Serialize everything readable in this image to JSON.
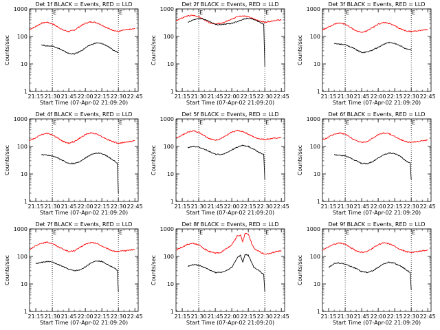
{
  "chart_data": [
    {
      "type": "line",
      "title": "Det 1f BLACK = Events, RED = LLD",
      "xlabel": "Start Time (07-Apr-02 21:09:20)",
      "ylabel": "Counts/sec",
      "ylog": true,
      "markers": [
        "E",
        "E"
      ],
      "series": [
        {
          "name": "LLD",
          "color": "#ff0000",
          "x": [
            "21:09:20",
            "21:15",
            "21:20",
            "21:25",
            "21:30",
            "21:35",
            "21:40",
            "21:45",
            "21:50",
            "21:55",
            "22:00",
            "22:05",
            "22:10",
            "22:15",
            "22:20",
            "22:25",
            "22:30",
            "22:35",
            "22:40",
            "22:45"
          ],
          "y": [
            180,
            230,
            300,
            330,
            290,
            220,
            170,
            150,
            170,
            230,
            300,
            340,
            320,
            260,
            200,
            170,
            150,
            170,
            180,
            190
          ]
        },
        {
          "name": "Events",
          "color": "#000000",
          "x": [
            "21:20",
            "21:25",
            "21:30",
            "21:35",
            "21:40",
            "21:45",
            "21:50",
            "21:55",
            "22:00",
            "22:05",
            "22:10",
            "22:15",
            "22:20",
            "22:25",
            "22:30"
          ],
          "y": [
            50,
            45,
            45,
            38,
            30,
            24,
            23,
            28,
            38,
            50,
            58,
            55,
            45,
            32,
            26
          ]
        }
      ]
    },
    {
      "type": "line",
      "title": "Det 2f BLACK = Events, RED = LLD",
      "xlabel": "Start Time (07-Apr-02 21:09:20)",
      "ylabel": "Counts/sec",
      "ylog": true,
      "markers": [
        "E",
        "E"
      ],
      "series": [
        {
          "name": "LLD",
          "color": "#ff0000",
          "x": [
            "21:09:20",
            "21:15",
            "21:20",
            "21:25",
            "21:30",
            "21:35",
            "21:40",
            "21:45",
            "21:50",
            "21:55",
            "22:00",
            "22:05",
            "22:10",
            "22:15",
            "22:20",
            "22:25",
            "22:30",
            "22:35",
            "22:40",
            "22:45"
          ],
          "y": [
            380,
            470,
            560,
            580,
            520,
            410,
            310,
            290,
            300,
            350,
            430,
            520,
            560,
            520,
            430,
            360,
            330,
            350,
            380,
            400
          ]
        },
        {
          "name": "Events",
          "color": "#000000",
          "x": [
            "21:20",
            "21:25",
            "21:30",
            "21:35",
            "21:40",
            "21:45",
            "21:50",
            "21:55",
            "22:00",
            "22:05",
            "22:10",
            "22:15",
            "22:20",
            "22:25",
            "22:29",
            "22:30"
          ],
          "y": [
            320,
            400,
            450,
            420,
            350,
            270,
            270,
            280,
            300,
            350,
            420,
            460,
            420,
            330,
            280,
            8
          ]
        }
      ]
    },
    {
      "type": "line",
      "title": "Det 3f BLACK = Events, RED = LLD",
      "xlabel": "Start Time (07-Apr-02 21:09:20)",
      "ylabel": "Counts/sec",
      "ylog": true,
      "markers": [
        "E",
        "E"
      ],
      "series": [
        {
          "name": "LLD",
          "color": "#ff0000",
          "x": [
            "21:09:20",
            "21:15",
            "21:20",
            "21:25",
            "21:30",
            "21:35",
            "21:40",
            "21:45",
            "21:50",
            "21:55",
            "22:00",
            "22:05",
            "22:10",
            "22:15",
            "22:20",
            "22:25",
            "22:30",
            "22:35",
            "22:40",
            "22:45"
          ],
          "y": [
            170,
            220,
            280,
            310,
            280,
            210,
            160,
            140,
            160,
            210,
            280,
            320,
            300,
            240,
            190,
            160,
            150,
            160,
            170,
            180
          ]
        },
        {
          "name": "Events",
          "color": "#000000",
          "x": [
            "21:20",
            "21:25",
            "21:30",
            "21:35",
            "21:40",
            "21:45",
            "21:50",
            "21:55",
            "22:00",
            "22:05",
            "22:10",
            "22:15",
            "22:20",
            "22:25",
            "22:30"
          ],
          "y": [
            55,
            52,
            50,
            42,
            33,
            26,
            27,
            32,
            40,
            52,
            60,
            55,
            46,
            36,
            32
          ]
        }
      ]
    },
    {
      "type": "line",
      "title": "Det 4f BLACK = Events, RED = LLD",
      "xlabel": "Start Time (07-Apr-02 21:09:20)",
      "ylabel": "Counts/sec",
      "ylog": true,
      "markers": [
        "E",
        "E"
      ],
      "series": [
        {
          "name": "LLD",
          "color": "#ff0000",
          "x": [
            "21:09:20",
            "21:15",
            "21:20",
            "21:25",
            "21:30",
            "21:35",
            "21:40",
            "21:45",
            "21:50",
            "21:55",
            "22:00",
            "22:05",
            "22:10",
            "22:15",
            "22:20",
            "22:25",
            "22:30",
            "22:35",
            "22:40",
            "22:45"
          ],
          "y": [
            160,
            210,
            270,
            300,
            270,
            200,
            150,
            130,
            150,
            200,
            270,
            310,
            290,
            230,
            180,
            150,
            130,
            140,
            150,
            160
          ]
        },
        {
          "name": "Events",
          "color": "#000000",
          "x": [
            "21:20",
            "21:25",
            "21:30",
            "21:35",
            "21:40",
            "21:45",
            "21:50",
            "21:55",
            "22:00",
            "22:05",
            "22:10",
            "22:15",
            "22:20",
            "22:25",
            "22:29",
            "22:30"
          ],
          "y": [
            50,
            48,
            45,
            38,
            30,
            24,
            24,
            28,
            38,
            50,
            58,
            55,
            44,
            32,
            25,
            2
          ]
        }
      ]
    },
    {
      "type": "line",
      "title": "Det 5f BLACK = Events, RED = LLD",
      "xlabel": "Start Time (07-Apr-02 21:09:20)",
      "ylabel": "Counts/sec",
      "ylog": true,
      "markers": [
        "E",
        "E"
      ],
      "series": [
        {
          "name": "LLD",
          "color": "#ff0000",
          "x": [
            "21:09:20",
            "21:15",
            "21:20",
            "21:25",
            "21:30",
            "21:35",
            "21:40",
            "21:45",
            "21:50",
            "21:55",
            "22:00",
            "22:05",
            "22:10",
            "22:15",
            "22:20",
            "22:25",
            "22:30",
            "22:35",
            "22:40",
            "22:45"
          ],
          "y": [
            200,
            260,
            330,
            370,
            330,
            250,
            190,
            170,
            190,
            250,
            330,
            380,
            350,
            280,
            220,
            190,
            180,
            190,
            200,
            210
          ]
        },
        {
          "name": "Events",
          "color": "#000000",
          "x": [
            "21:20",
            "21:25",
            "21:30",
            "21:35",
            "21:40",
            "21:45",
            "21:50",
            "21:55",
            "22:00",
            "22:05",
            "22:10",
            "22:15",
            "22:20",
            "22:25",
            "22:29",
            "22:30"
          ],
          "y": [
            90,
            100,
            95,
            80,
            65,
            52,
            50,
            58,
            75,
            95,
            110,
            100,
            80,
            60,
            52,
            6
          ]
        }
      ]
    },
    {
      "type": "line",
      "title": "Det 6f BLACK = Events, RED = LLD",
      "xlabel": "Start Time (07-Apr-02 21:09:20)",
      "ylabel": "Counts/sec",
      "ylog": true,
      "markers": [
        "E",
        "E"
      ],
      "series": [
        {
          "name": "LLD",
          "color": "#ff0000",
          "x": [
            "21:09:20",
            "21:15",
            "21:20",
            "21:25",
            "21:30",
            "21:35",
            "21:40",
            "21:45",
            "21:50",
            "21:55",
            "22:00",
            "22:05",
            "22:10",
            "22:15",
            "22:20",
            "22:25",
            "22:30",
            "22:35",
            "22:40",
            "22:45"
          ],
          "y": [
            170,
            220,
            280,
            310,
            280,
            210,
            160,
            140,
            150,
            200,
            270,
            310,
            290,
            230,
            180,
            150,
            140,
            150,
            160,
            170
          ]
        },
        {
          "name": "Events",
          "color": "#000000",
          "x": [
            "21:20",
            "21:25",
            "21:30",
            "21:35",
            "21:40",
            "21:45",
            "21:50",
            "21:55",
            "22:00",
            "22:05",
            "22:10",
            "22:15",
            "22:20",
            "22:25",
            "22:29",
            "22:30"
          ],
          "y": [
            50,
            48,
            45,
            38,
            30,
            24,
            24,
            28,
            38,
            50,
            58,
            55,
            44,
            30,
            25,
            6
          ]
        }
      ]
    },
    {
      "type": "line",
      "title": "Det 7f BLACK = Events, RED = LLD",
      "xlabel": "Start Time (07-Apr-02 21:09:20)",
      "ylabel": "Counts/sec",
      "ylog": true,
      "markers": [
        "E",
        "E"
      ],
      "series": [
        {
          "name": "LLD",
          "color": "#ff0000",
          "x": [
            "21:09:20",
            "21:15",
            "21:20",
            "21:25",
            "21:30",
            "21:35",
            "21:40",
            "21:45",
            "21:50",
            "21:55",
            "22:00",
            "22:05",
            "22:10",
            "22:15",
            "22:20",
            "22:25",
            "22:30",
            "22:35",
            "22:40",
            "22:45"
          ],
          "y": [
            180,
            240,
            300,
            330,
            300,
            230,
            180,
            150,
            160,
            210,
            280,
            320,
            300,
            240,
            190,
            160,
            150,
            160,
            170,
            180
          ]
        },
        {
          "name": "Events",
          "color": "#000000",
          "x": [
            "21:15",
            "21:20",
            "21:25",
            "21:30",
            "21:35",
            "21:40",
            "21:45",
            "21:50",
            "21:55",
            "22:00",
            "22:05",
            "22:10",
            "22:15",
            "22:20",
            "22:25",
            "22:29",
            "22:30"
          ],
          "y": [
            55,
            60,
            65,
            62,
            52,
            42,
            34,
            30,
            32,
            42,
            58,
            70,
            65,
            52,
            40,
            32,
            5
          ]
        }
      ]
    },
    {
      "type": "line",
      "title": "Det 8f BLACK = Events, RED = LLD",
      "xlabel": "Start Time (07-Apr-02 21:09:20)",
      "ylabel": "Counts/sec",
      "ylog": true,
      "markers": [
        "E",
        "E"
      ],
      "series": [
        {
          "name": "LLD",
          "color": "#ff0000",
          "x": [
            "21:09:20",
            "21:15",
            "21:20",
            "21:25",
            "21:30",
            "21:35",
            "21:40",
            "21:45",
            "21:50",
            "21:55",
            "22:00",
            "22:05",
            "22:08",
            "22:10",
            "22:12",
            "22:15",
            "22:18",
            "22:20",
            "22:25",
            "22:30",
            "22:35",
            "22:40",
            "22:45"
          ],
          "y": [
            170,
            220,
            280,
            300,
            260,
            190,
            150,
            130,
            140,
            190,
            260,
            560,
            600,
            330,
            700,
            650,
            300,
            200,
            150,
            120,
            130,
            150,
            160
          ]
        },
        {
          "name": "Events",
          "color": "#000000",
          "x": [
            "21:20",
            "21:25",
            "21:30",
            "21:35",
            "21:40",
            "21:45",
            "21:50",
            "21:55",
            "22:00",
            "22:05",
            "22:08",
            "22:10",
            "22:12",
            "22:15",
            "22:18",
            "22:20",
            "22:25",
            "22:29",
            "22:30"
          ],
          "y": [
            45,
            50,
            48,
            40,
            32,
            26,
            26,
            30,
            40,
            90,
            110,
            60,
            120,
            110,
            60,
            40,
            30,
            22,
            5
          ]
        }
      ]
    },
    {
      "type": "line",
      "title": "Det 9f BLACK = Events, RED = LLD",
      "xlabel": "Start Time (07-Apr-02 21:09:20)",
      "ylabel": "Counts/sec",
      "ylog": true,
      "markers": [
        "E",
        "E"
      ],
      "series": [
        {
          "name": "LLD",
          "color": "#ff0000",
          "x": [
            "21:09:20",
            "21:15",
            "21:20",
            "21:25",
            "21:30",
            "21:35",
            "21:40",
            "21:45",
            "21:50",
            "21:55",
            "22:00",
            "22:05",
            "22:10",
            "22:15",
            "22:20",
            "22:25",
            "22:30",
            "22:35",
            "22:40",
            "22:45"
          ],
          "y": [
            170,
            220,
            280,
            310,
            280,
            210,
            160,
            140,
            150,
            200,
            270,
            310,
            290,
            230,
            180,
            150,
            140,
            150,
            160,
            170
          ]
        },
        {
          "name": "Events",
          "color": "#000000",
          "x": [
            "21:15",
            "21:20",
            "21:25",
            "21:30",
            "21:35",
            "21:40",
            "21:45",
            "21:50",
            "21:55",
            "22:00",
            "22:05",
            "22:10",
            "22:15",
            "22:20",
            "22:25",
            "22:29",
            "22:30"
          ],
          "y": [
            40,
            55,
            58,
            52,
            44,
            36,
            28,
            26,
            30,
            40,
            54,
            62,
            56,
            45,
            34,
            26,
            6
          ]
        }
      ]
    }
  ],
  "axes": {
    "x_ticks": [
      "21:15",
      "21:30",
      "21:45",
      "22:00",
      "22:15",
      "22:30",
      "22:45"
    ],
    "y_ticks": [
      "1",
      "10",
      "100",
      "1000"
    ],
    "marker_times": [
      "21:30",
      "22:30"
    ],
    "x_range": [
      "21:09:20",
      "22:48:00"
    ],
    "y_range": [
      1,
      1000
    ]
  }
}
